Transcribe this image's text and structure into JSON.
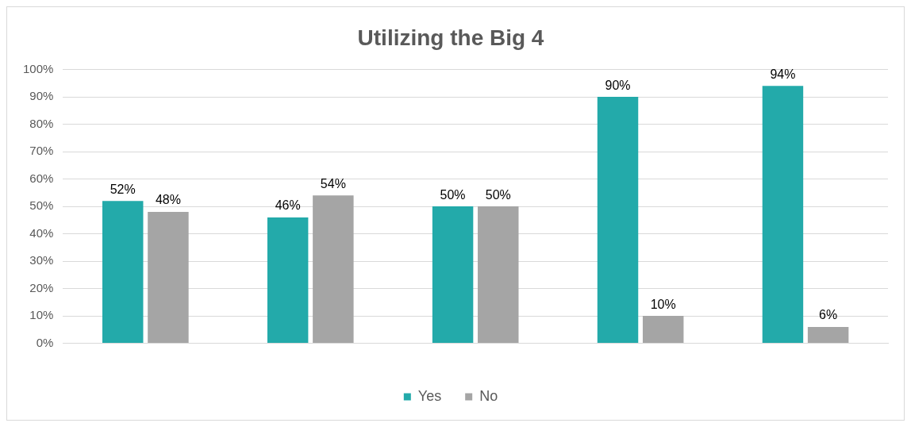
{
  "chart_data": {
    "type": "bar",
    "title": "Utilizing the Big 4",
    "categories": [
      null,
      null,
      null,
      null,
      null
    ],
    "series": [
      {
        "name": "Yes",
        "color": "#23aaaa",
        "values": [
          52,
          46,
          50,
          90,
          94
        ],
        "value_labels": [
          "52%",
          "46%",
          "50%",
          "90%",
          "94%"
        ]
      },
      {
        "name": "No",
        "color": "#a5a5a5",
        "values": [
          48,
          54,
          50,
          10,
          6
        ],
        "value_labels": [
          "48%",
          "54%",
          "50%",
          "10%",
          "6%"
        ]
      }
    ],
    "ylim": [
      0,
      100
    ],
    "yticks": [
      {
        "value": 0,
        "label": "0%"
      },
      {
        "value": 10,
        "label": "10%"
      },
      {
        "value": 20,
        "label": "20%"
      },
      {
        "value": 30,
        "label": "30%"
      },
      {
        "value": 40,
        "label": "40%"
      },
      {
        "value": 50,
        "label": "50%"
      },
      {
        "value": 60,
        "label": "60%"
      },
      {
        "value": 70,
        "label": "70%"
      },
      {
        "value": 80,
        "label": "80%"
      },
      {
        "value": 90,
        "label": "90%"
      },
      {
        "value": 100,
        "label": "100%"
      }
    ],
    "grid": "y",
    "legend": "bottom"
  }
}
